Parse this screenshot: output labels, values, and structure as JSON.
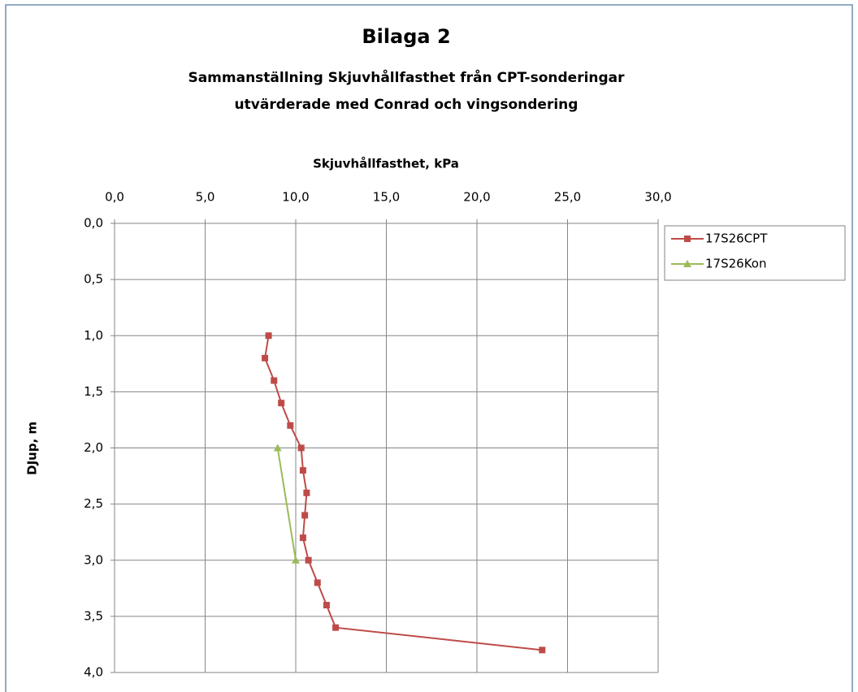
{
  "chart_data": {
    "type": "line",
    "title": "Bilaga 2",
    "subtitle": [
      "Sammanställning Skjuvhållfasthet från CPT-sonderingar",
      "utvärderade med Conrad och vingsondering"
    ],
    "x_label": "Skjuvhållfasthet, kPa",
    "y_label": "DJup, m",
    "xlim": [
      0,
      30
    ],
    "xticks": [
      {
        "value": 0,
        "label": "0,0"
      },
      {
        "value": 5,
        "label": "5,0"
      },
      {
        "value": 10,
        "label": "10,0"
      },
      {
        "value": 15,
        "label": "15,0"
      },
      {
        "value": 20,
        "label": "20,0"
      },
      {
        "value": 25,
        "label": "25,0"
      },
      {
        "value": 30,
        "label": "30,0"
      }
    ],
    "ylim": [
      0,
      4
    ],
    "y_inverted": true,
    "yticks": [
      {
        "value": 0,
        "label": "0,0"
      },
      {
        "value": 0.5,
        "label": "0,5"
      },
      {
        "value": 1,
        "label": "1,0"
      },
      {
        "value": 1.5,
        "label": "1,5"
      },
      {
        "value": 2,
        "label": "2,0"
      },
      {
        "value": 2.5,
        "label": "2,5"
      },
      {
        "value": 3,
        "label": "3,0"
      },
      {
        "value": 3.5,
        "label": "3,5"
      },
      {
        "value": 4,
        "label": "4,0"
      }
    ],
    "grid": true,
    "legend": "right",
    "series": [
      {
        "name": "17S26CPT",
        "color": "#be4b48",
        "marker": "square",
        "x": [
          8.5,
          8.3,
          8.8,
          9.2,
          9.7,
          10.3,
          10.4,
          10.6,
          10.5,
          10.4,
          10.7,
          11.2,
          11.7,
          12.2,
          23.6
        ],
        "values": [
          1.0,
          1.2,
          1.4,
          1.6,
          1.8,
          2.0,
          2.2,
          2.4,
          2.6,
          2.8,
          3.0,
          3.2,
          3.4,
          3.6,
          3.8
        ]
      },
      {
        "name": "17S26Kon",
        "color": "#9bbb59",
        "marker": "triangle",
        "x": [
          9.0,
          10.0
        ],
        "values": [
          2.0,
          3.0
        ]
      }
    ]
  }
}
